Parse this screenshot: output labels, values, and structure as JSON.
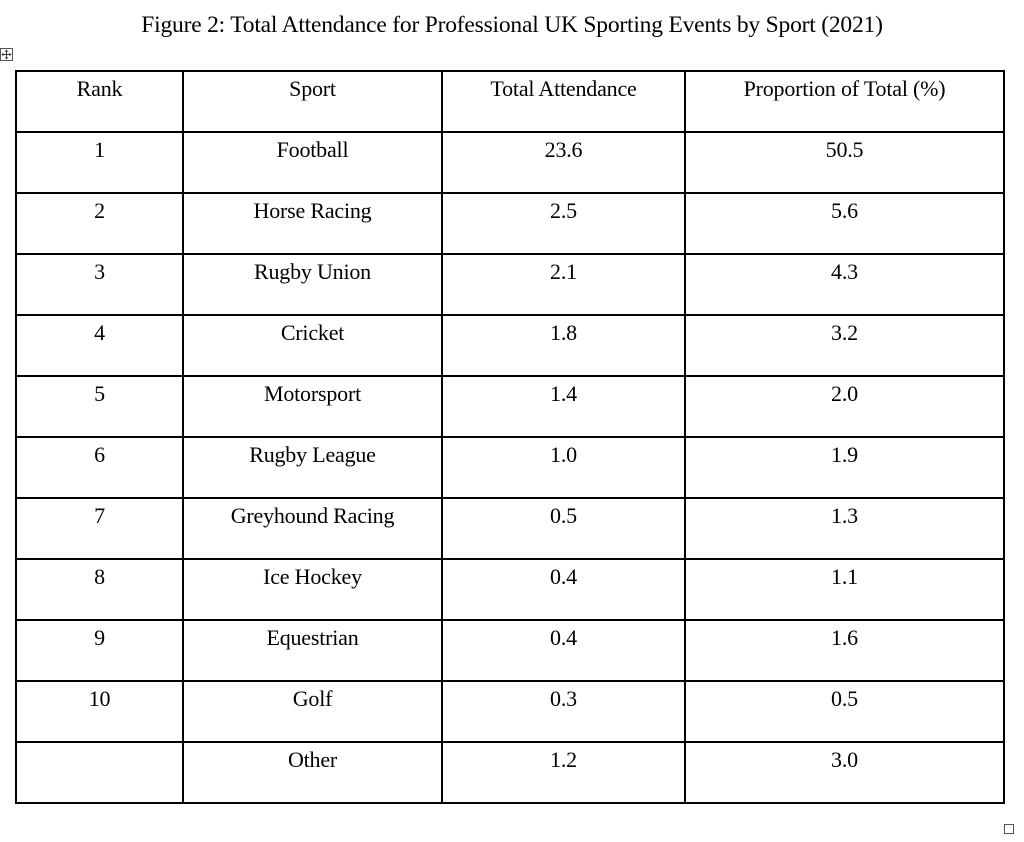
{
  "caption": "Figure 2: Total Attendance for Professional UK Sporting Events by Sport (2021)",
  "table": {
    "headers": [
      "Rank",
      "Sport",
      "Total Attendance",
      "Proportion of Total (%)"
    ],
    "rows": [
      [
        "1",
        "Football",
        "23.6",
        "50.5"
      ],
      [
        "2",
        "Horse Racing",
        "2.5",
        "5.6"
      ],
      [
        "3",
        "Rugby Union",
        "2.1",
        "4.3"
      ],
      [
        "4",
        "Cricket",
        "1.8",
        "3.2"
      ],
      [
        "5",
        "Motorsport",
        "1.4",
        "2.0"
      ],
      [
        "6",
        "Rugby League",
        "1.0",
        "1.9"
      ],
      [
        "7",
        "Greyhound Racing",
        "0.5",
        "1.3"
      ],
      [
        "8",
        "Ice Hockey",
        "0.4",
        "1.1"
      ],
      [
        "9",
        "Equestrian",
        "0.4",
        "1.6"
      ],
      [
        "10",
        "Golf",
        "0.3",
        "0.5"
      ],
      [
        "",
        "Other",
        "1.2",
        "3.0"
      ]
    ]
  },
  "icons": {
    "move_handle": "table-move-icon",
    "resize_handle": "table-resize-icon"
  }
}
